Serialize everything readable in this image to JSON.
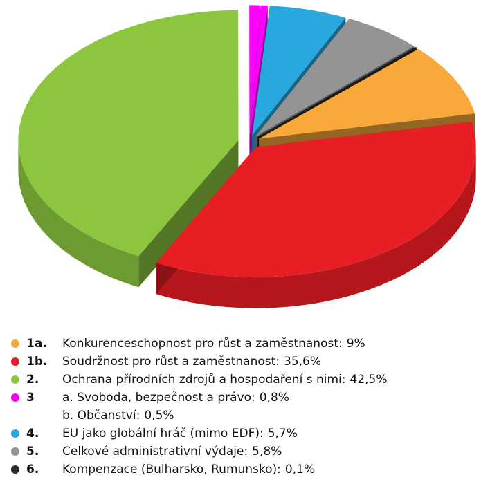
{
  "chart_data": {
    "type": "pie",
    "categories": [
      "1a.",
      "1b.",
      "2.",
      "3",
      null,
      "4.",
      "5.",
      "6."
    ],
    "names": [
      "Konkurenceschopnost pro růst a zaměstnanost:",
      "Soudržnost pro růst a zaměstnanost:",
      "Ochrana přírodních zdrojů a hospodaření s nimi:",
      "a. Svoboda, bezpečnost a právo:",
      "b. Občanství:",
      "EU jako globální hráč (mimo EDF):",
      "Celkové administrativní výdaje:",
      "Kompenzace (Bulharsko, Rumunsko):"
    ],
    "values": [
      9,
      35.6,
      42.5,
      0.8,
      0.5,
      5.7,
      5.8,
      0.1
    ],
    "value_labels": [
      "9%",
      "35,6%",
      "42,5%",
      "0,8%",
      "0,5%",
      "5,7%",
      "5,8%",
      "0,1%"
    ],
    "colors": [
      "#f9a83c",
      "#e81e25",
      "#8cc63f",
      "#ff00ff",
      "#ff00ff",
      "#29a8e0",
      "#949494",
      "#2a2a2a"
    ]
  }
}
